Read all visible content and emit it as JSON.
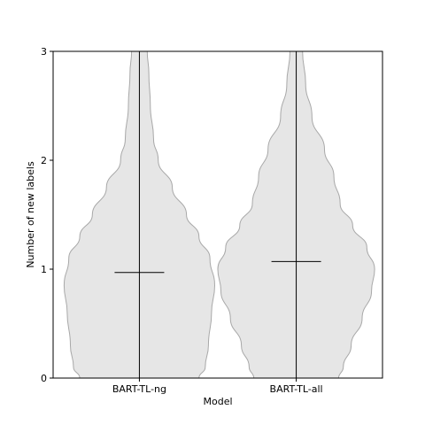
{
  "chart_data": {
    "type": "violin",
    "title": "",
    "xlabel": "Model",
    "ylabel": "Number of new labels",
    "ylim": [
      0,
      3
    ],
    "yticks": [
      0,
      1,
      2,
      3
    ],
    "grid": false,
    "categories": [
      "BART-TL-ng",
      "BART-TL-all"
    ],
    "series": [
      {
        "category": "BART-TL-ng",
        "mean": 0.97,
        "min": 0,
        "max": 3,
        "density_profile": [
          {
            "y": 0.0,
            "width": 0.38
          },
          {
            "y": 0.1,
            "width": 0.42
          },
          {
            "y": 0.3,
            "width": 0.44
          },
          {
            "y": 0.6,
            "width": 0.46
          },
          {
            "y": 0.85,
            "width": 0.48
          },
          {
            "y": 1.1,
            "width": 0.45
          },
          {
            "y": 1.3,
            "width": 0.38
          },
          {
            "y": 1.5,
            "width": 0.3
          },
          {
            "y": 1.75,
            "width": 0.21
          },
          {
            "y": 2.0,
            "width": 0.12
          },
          {
            "y": 2.2,
            "width": 0.09
          },
          {
            "y": 2.5,
            "width": 0.07
          },
          {
            "y": 2.8,
            "width": 0.06
          },
          {
            "y": 3.0,
            "width": 0.05
          }
        ]
      },
      {
        "category": "BART-TL-all",
        "mean": 1.07,
        "min": 0,
        "max": 3,
        "density_profile": [
          {
            "y": 0.0,
            "width": 0.27
          },
          {
            "y": 0.1,
            "width": 0.3
          },
          {
            "y": 0.3,
            "width": 0.35
          },
          {
            "y": 0.55,
            "width": 0.42
          },
          {
            "y": 0.8,
            "width": 0.48
          },
          {
            "y": 1.0,
            "width": 0.5
          },
          {
            "y": 1.2,
            "width": 0.45
          },
          {
            "y": 1.4,
            "width": 0.36
          },
          {
            "y": 1.6,
            "width": 0.28
          },
          {
            "y": 1.85,
            "width": 0.24
          },
          {
            "y": 2.1,
            "width": 0.18
          },
          {
            "y": 2.4,
            "width": 0.1
          },
          {
            "y": 2.7,
            "width": 0.06
          },
          {
            "y": 3.0,
            "width": 0.04
          }
        ]
      }
    ],
    "colors": {
      "violin_fill": "#e6e6e6",
      "violin_edge": "#a8a8a8",
      "line": "#000000"
    }
  }
}
